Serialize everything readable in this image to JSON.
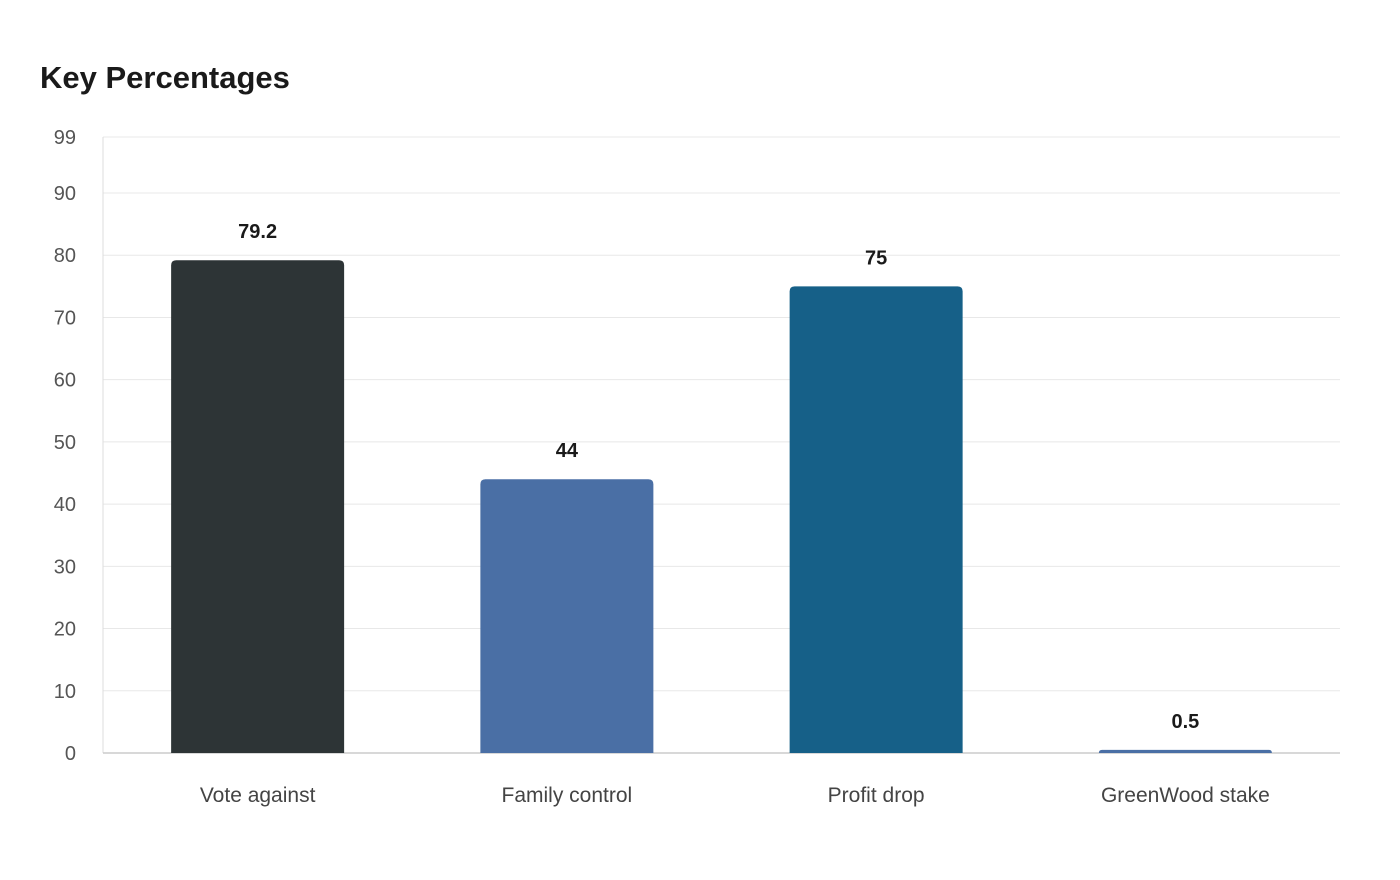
{
  "chart_data": {
    "type": "bar",
    "title": "Key Percentages",
    "xlabel": "",
    "ylabel": "",
    "categories": [
      "Vote against",
      "Family control",
      "Profit drop",
      "GreenWood stake"
    ],
    "values": [
      79.2,
      44,
      75,
      0.5
    ],
    "value_labels": [
      "79.2",
      "44",
      "75",
      "0.5"
    ],
    "ylim": [
      0,
      99
    ],
    "yticks": [
      0,
      10,
      20,
      30,
      40,
      50,
      60,
      70,
      80,
      90,
      99
    ],
    "grid": true,
    "legend": "none",
    "colors": [
      "#2d3436",
      "#4a6fa5",
      "#166088",
      "#4a6fa5"
    ]
  }
}
